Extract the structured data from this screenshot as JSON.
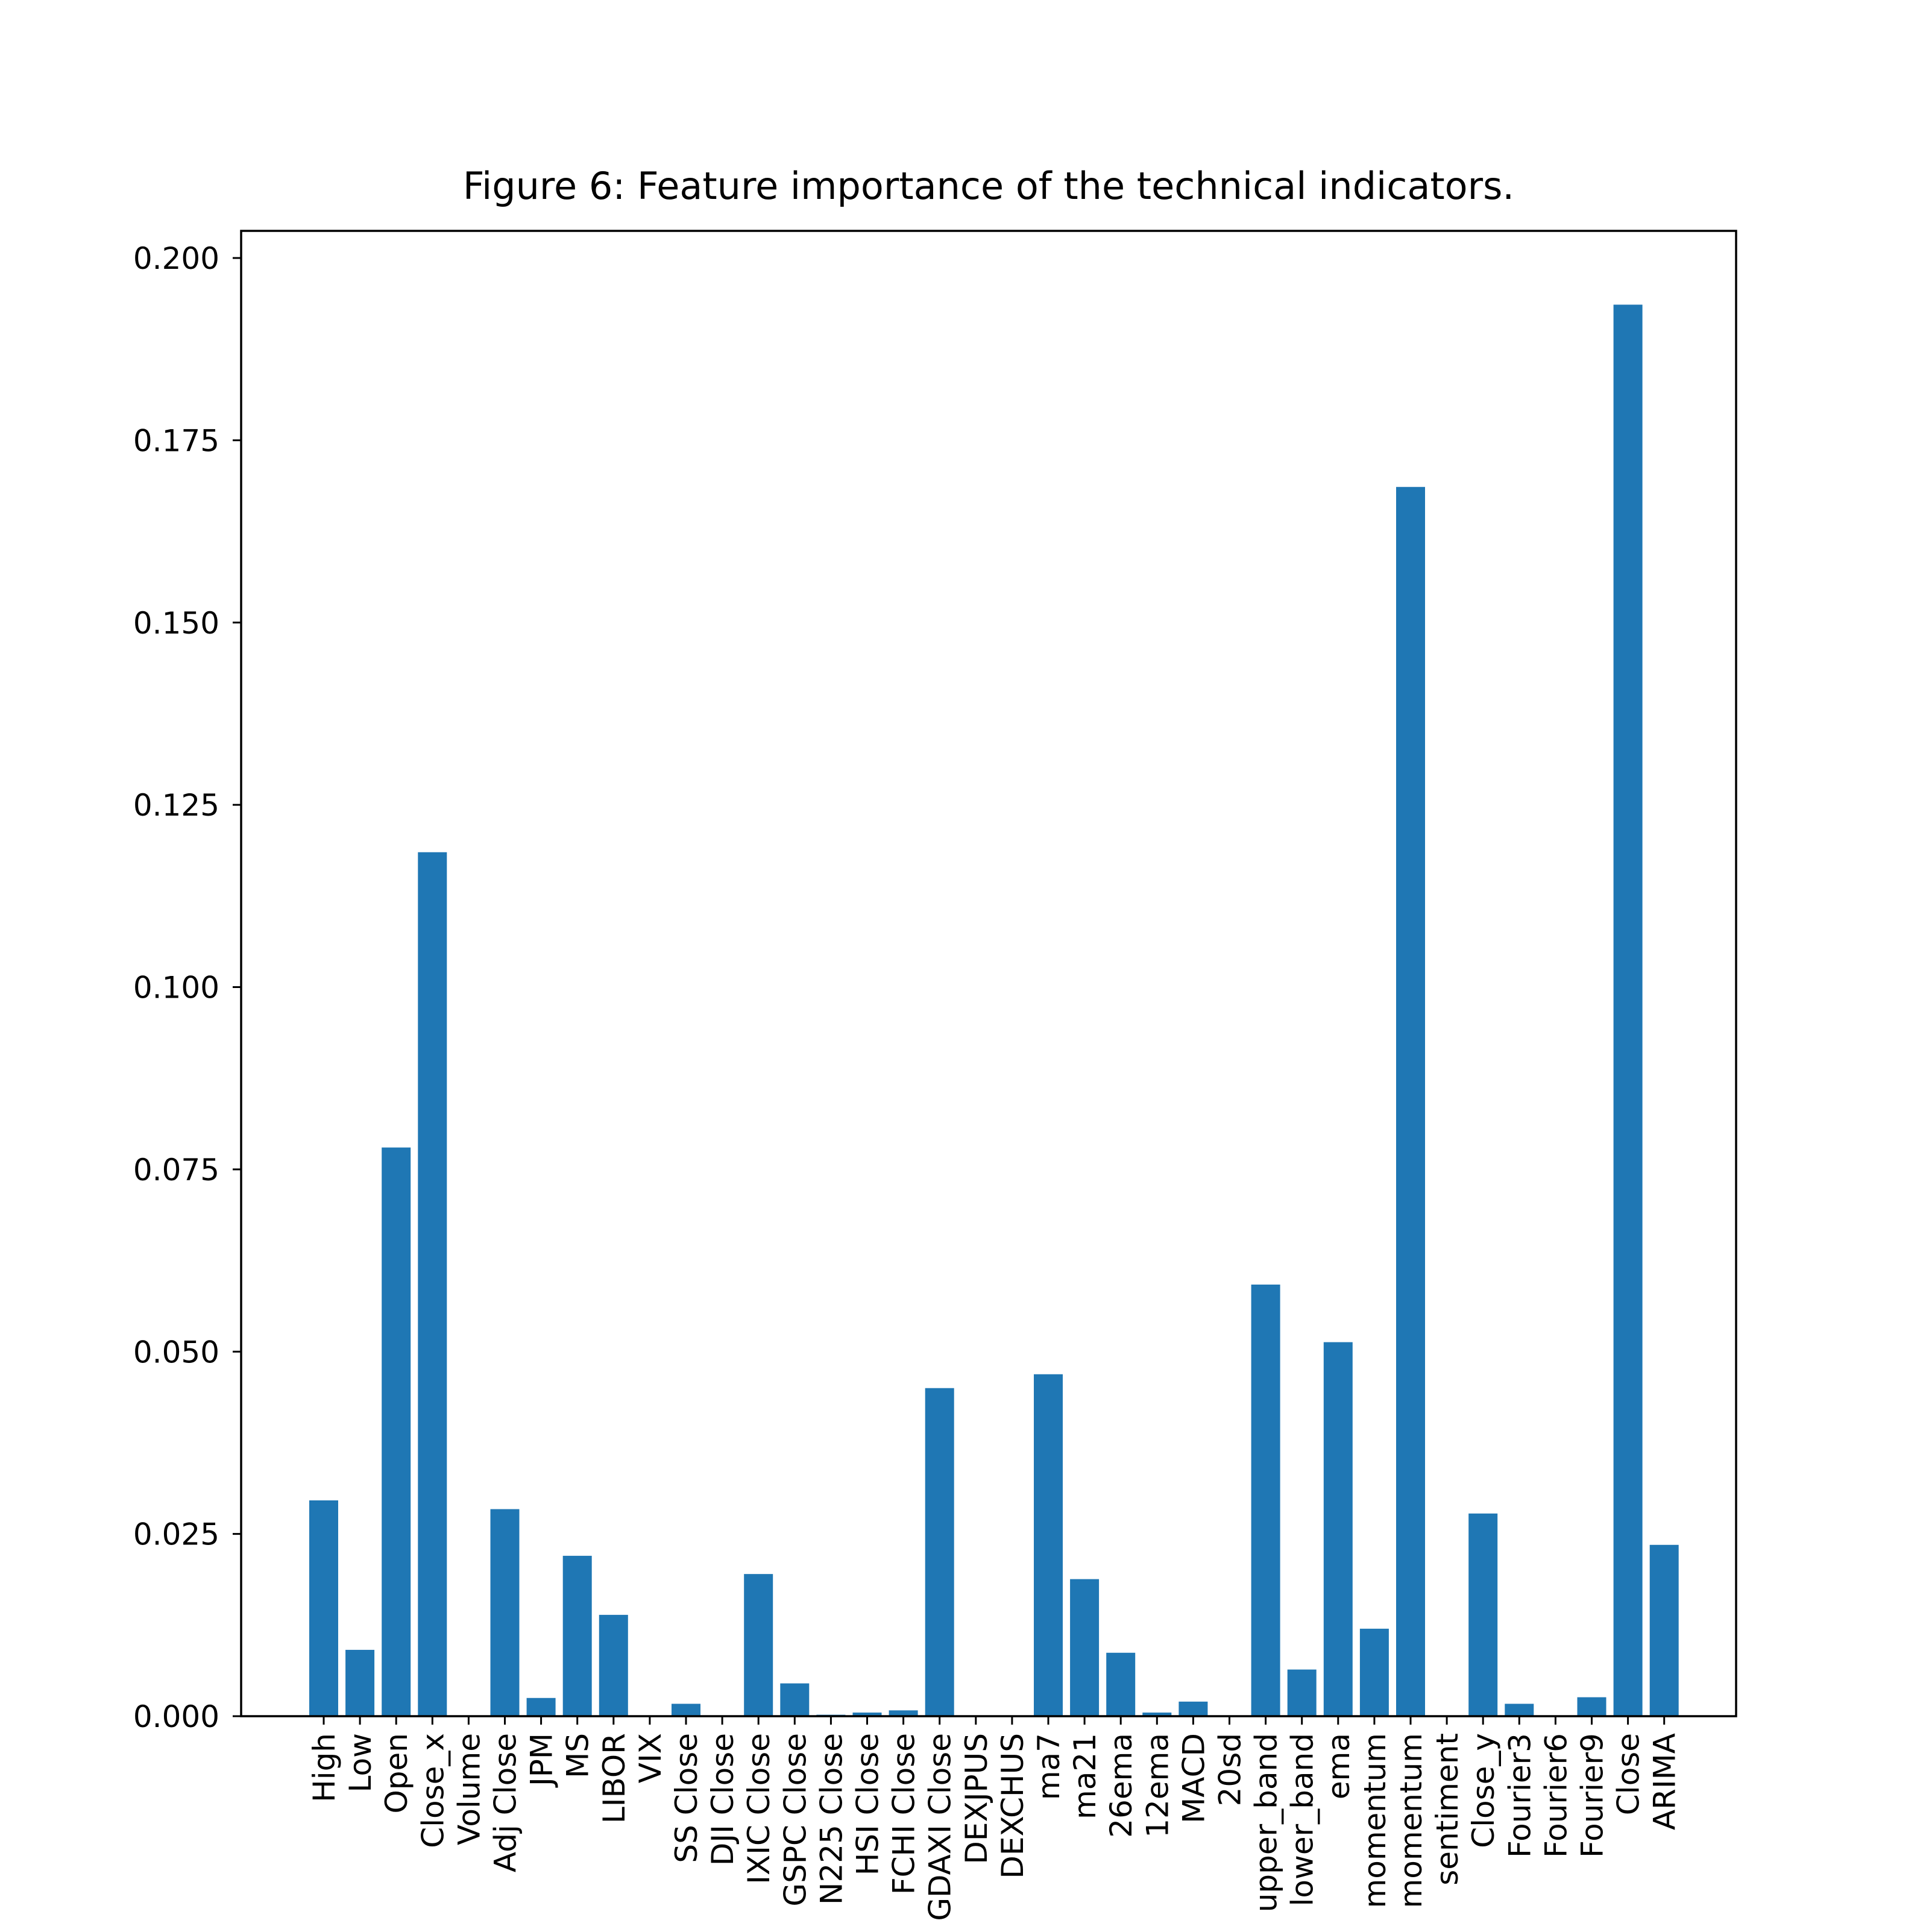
{
  "chart_data": {
    "type": "bar",
    "title": "Figure 6: Feature importance of the technical indicators.",
    "xlabel": "",
    "ylabel": "",
    "ylim": [
      0,
      0.203
    ],
    "yticks": [
      "0.000",
      "0.025",
      "0.050",
      "0.075",
      "0.100",
      "0.125",
      "0.150",
      "0.175",
      "0.200"
    ],
    "grid": false,
    "legend": "none",
    "bar_color": "#1f77b4",
    "categories": [
      "High",
      "Low",
      "Open",
      "Close_x",
      "Volume",
      "Adj Close",
      "JPM",
      "MS",
      "LIBOR",
      "VIX",
      "SS Close",
      "DJI Close",
      "IXIC Close",
      "GSPC Close",
      "N225 Close",
      "HSI Close",
      "FCHI Close",
      "GDAXI Close",
      "DEXJPUS",
      "DEXCHUS",
      "ma7",
      "ma21",
      "26ema",
      "12ema",
      "MACD",
      "20sd",
      "upper_band",
      "lower_band",
      "ema",
      "momentum",
      "momentum",
      "sentiment",
      "Close_y",
      "Fourier3",
      "Fourier6",
      "Fourier9",
      "Close",
      "ARIMA"
    ],
    "values": [
      0.0296,
      0.0091,
      0.078,
      0.1185,
      0.0,
      0.0284,
      0.0025,
      0.022,
      0.0139,
      0.0,
      0.0017,
      0.0,
      0.0195,
      0.0045,
      0.0002,
      0.0005,
      0.0008,
      0.045,
      0.0,
      0.0,
      0.0469,
      0.0188,
      0.0087,
      0.0005,
      0.002,
      0.0,
      0.0592,
      0.0064,
      0.0513,
      0.012,
      0.1686,
      0.0,
      0.0278,
      0.0017,
      0.0,
      0.0026,
      0.1936,
      0.0235
    ]
  }
}
